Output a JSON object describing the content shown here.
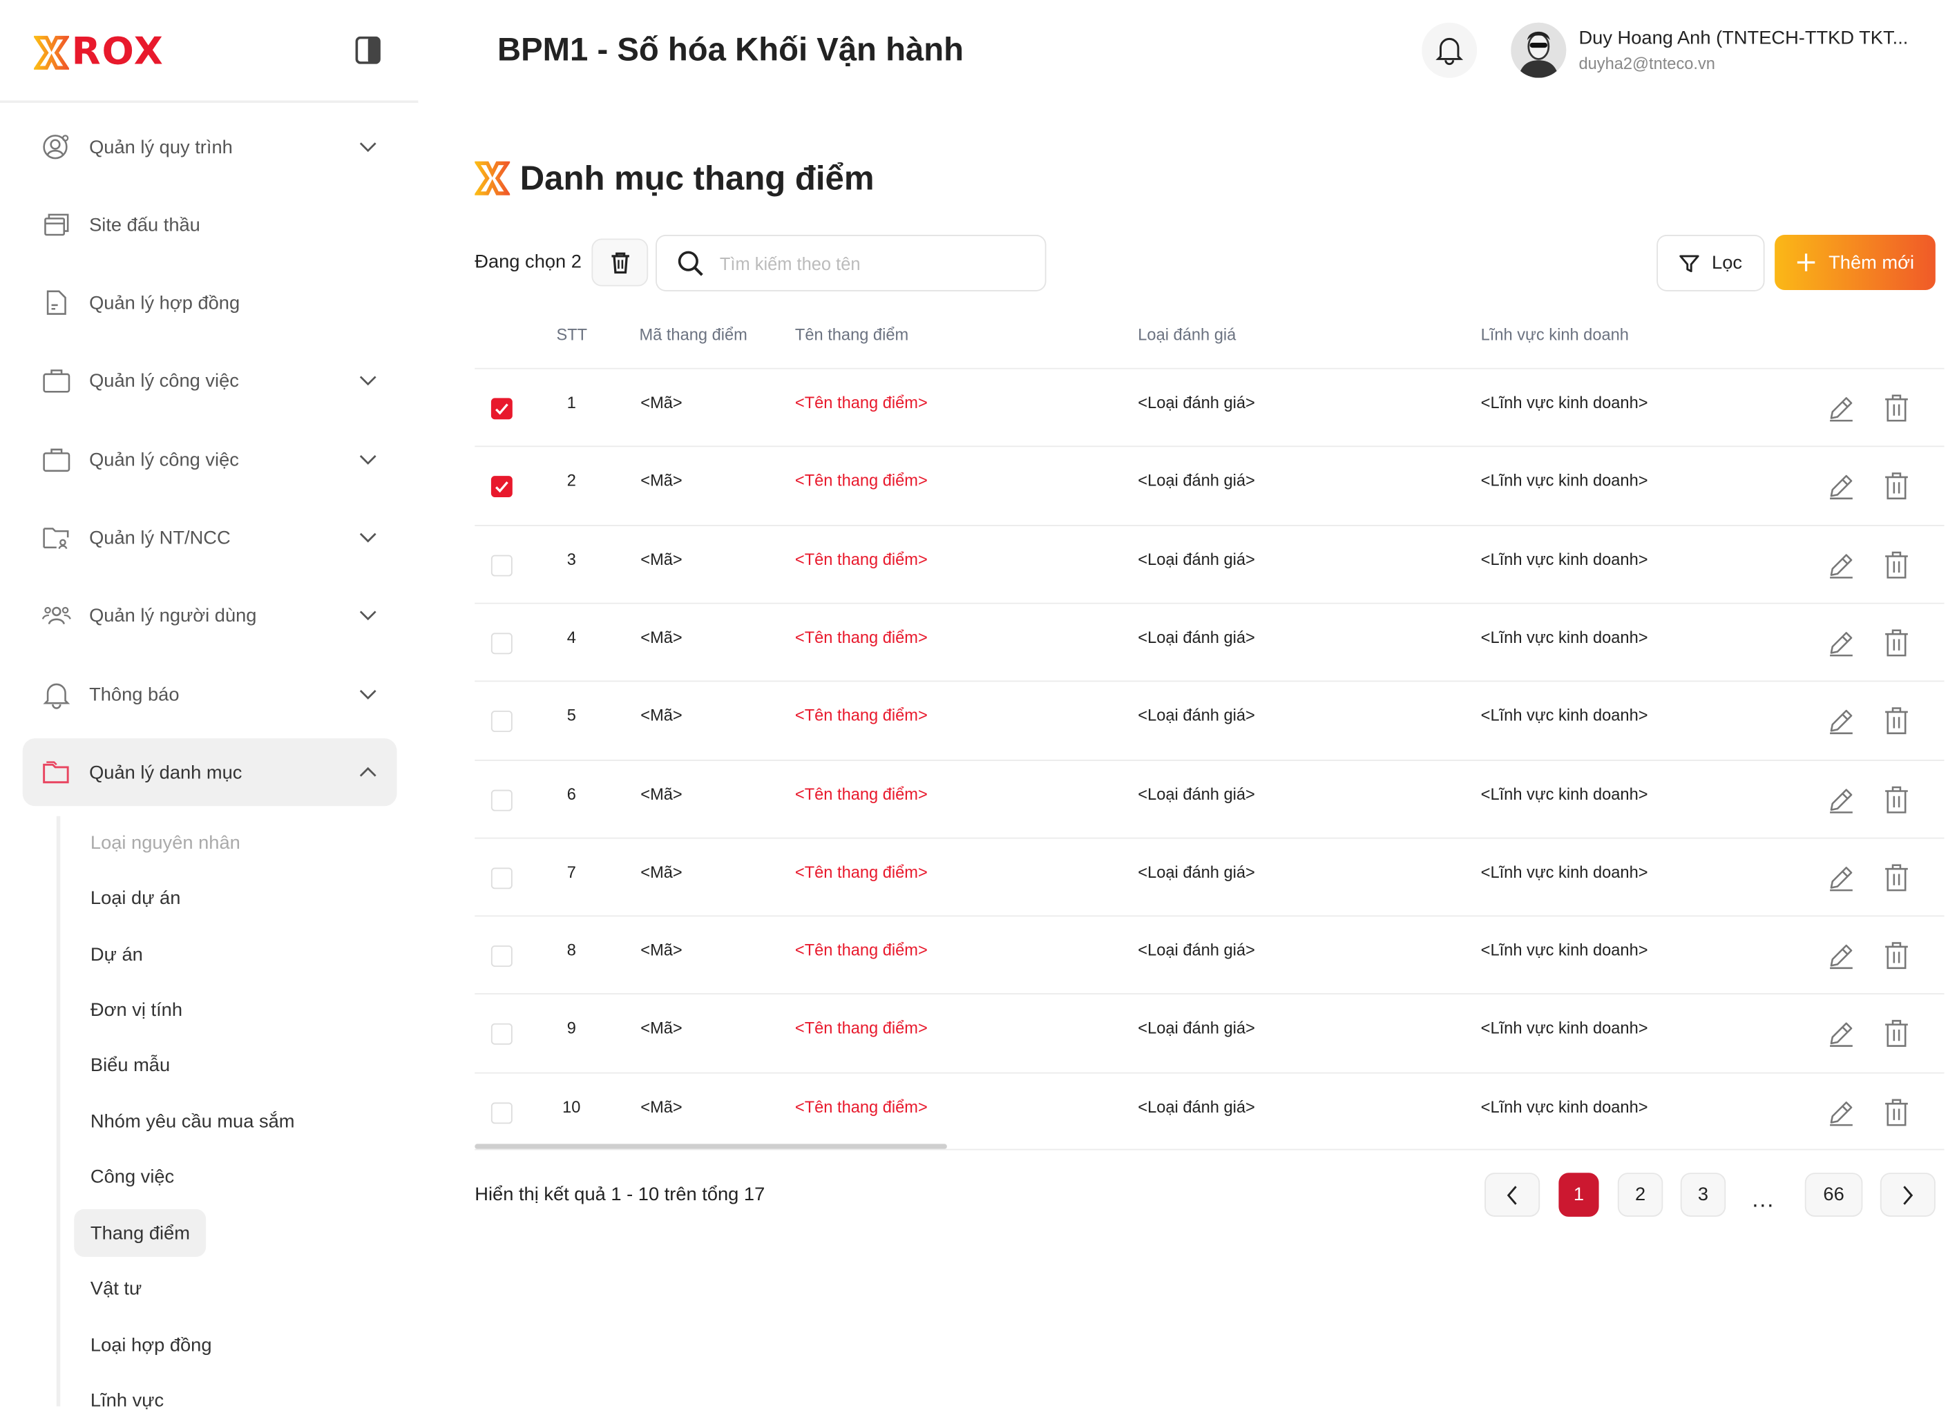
{
  "brand": {
    "logo_text": "ROX",
    "accent": "#e8192c",
    "gradient": [
      "#fbb817",
      "#f05a28"
    ]
  },
  "header": {
    "title": "BPM1 - Số hóa Khối Vận hành",
    "user_name": "Duy Hoang Anh (TNTECH-TTKD TKT...",
    "user_email": "duyha2@tnteco.vn"
  },
  "sidebar": {
    "items": [
      {
        "label": "Quản lý quy trình",
        "icon": "user-gear-icon",
        "chevron": "down"
      },
      {
        "label": "Site đấu thầu",
        "icon": "windows-icon"
      },
      {
        "label": "Quản lý hợp đồng",
        "icon": "document-icon"
      },
      {
        "label": "Quản lý công việc",
        "icon": "briefcase-icon",
        "chevron": "down"
      },
      {
        "label": "Quản lý công việc",
        "icon": "briefcase-icon",
        "chevron": "down"
      },
      {
        "label": "Quản lý NT/NCC",
        "icon": "folder-user-icon",
        "chevron": "down"
      },
      {
        "label": "Quản lý người dùng",
        "icon": "users-icon",
        "chevron": "down"
      },
      {
        "label": "Thông báo",
        "icon": "bell-icon",
        "chevron": "down"
      },
      {
        "label": "Quản lý danh mục",
        "icon": "folder-icon",
        "chevron": "up",
        "active": true
      }
    ],
    "sub_items": [
      {
        "label": "Loại nguyên nhân",
        "muted": true
      },
      {
        "label": "Loại dự án"
      },
      {
        "label": "Dự án"
      },
      {
        "label": "Đơn vị tính"
      },
      {
        "label": "Biểu mẫu"
      },
      {
        "label": "Nhóm yêu cầu mua sắm"
      },
      {
        "label": "Công việc"
      },
      {
        "label": "Thang điểm",
        "active": true
      },
      {
        "label": "Vật tư"
      },
      {
        "label": "Loại hợp đồng"
      },
      {
        "label": "Lĩnh vực"
      }
    ]
  },
  "page": {
    "title": "Danh mục thang điểm",
    "selected_text": "Đang chọn 2",
    "search_placeholder": "Tìm kiếm theo tên",
    "filter_label": "Lọc",
    "add_label": "Thêm mới"
  },
  "table": {
    "columns": [
      "STT",
      "Mã thang điểm",
      "Tên thang điểm",
      "Loại đánh giá",
      "Lĩnh vực kinh doanh"
    ],
    "rows": [
      {
        "checked": true,
        "stt": "1",
        "code": "<Mã>",
        "name": "<Tên thang điểm>",
        "type": "<Loại đánh giá>",
        "field": "<Lĩnh vực kinh doanh>"
      },
      {
        "checked": true,
        "stt": "2",
        "code": "<Mã>",
        "name": "<Tên thang điểm>",
        "type": "<Loại đánh giá>",
        "field": "<Lĩnh vực kinh doanh>"
      },
      {
        "checked": false,
        "stt": "3",
        "code": "<Mã>",
        "name": "<Tên thang điểm>",
        "type": "<Loại đánh giá>",
        "field": "<Lĩnh vực kinh doanh>"
      },
      {
        "checked": false,
        "stt": "4",
        "code": "<Mã>",
        "name": "<Tên thang điểm>",
        "type": "<Loại đánh giá>",
        "field": "<Lĩnh vực kinh doanh>"
      },
      {
        "checked": false,
        "stt": "5",
        "code": "<Mã>",
        "name": "<Tên thang điểm>",
        "type": "<Loại đánh giá>",
        "field": "<Lĩnh vực kinh doanh>"
      },
      {
        "checked": false,
        "stt": "6",
        "code": "<Mã>",
        "name": "<Tên thang điểm>",
        "type": "<Loại đánh giá>",
        "field": "<Lĩnh vực kinh doanh>"
      },
      {
        "checked": false,
        "stt": "7",
        "code": "<Mã>",
        "name": "<Tên thang điểm>",
        "type": "<Loại đánh giá>",
        "field": "<Lĩnh vực kinh doanh>"
      },
      {
        "checked": false,
        "stt": "8",
        "code": "<Mã>",
        "name": "<Tên thang điểm>",
        "type": "<Loại đánh giá>",
        "field": "<Lĩnh vực kinh doanh>"
      },
      {
        "checked": false,
        "stt": "9",
        "code": "<Mã>",
        "name": "<Tên thang điểm>",
        "type": "<Loại đánh giá>",
        "field": "<Lĩnh vực kinh doanh>"
      },
      {
        "checked": false,
        "stt": "10",
        "code": "<Mã>",
        "name": "<Tên thang điểm>",
        "type": "<Loại đánh giá>",
        "field": "<Lĩnh vực kinh doanh>"
      }
    ]
  },
  "footer": {
    "summary": "Hiển thị kết quả 1 - 10 trên tổng 17",
    "pages": [
      "1",
      "2",
      "3",
      "66"
    ],
    "current_page": "1",
    "ellipsis": "..."
  }
}
